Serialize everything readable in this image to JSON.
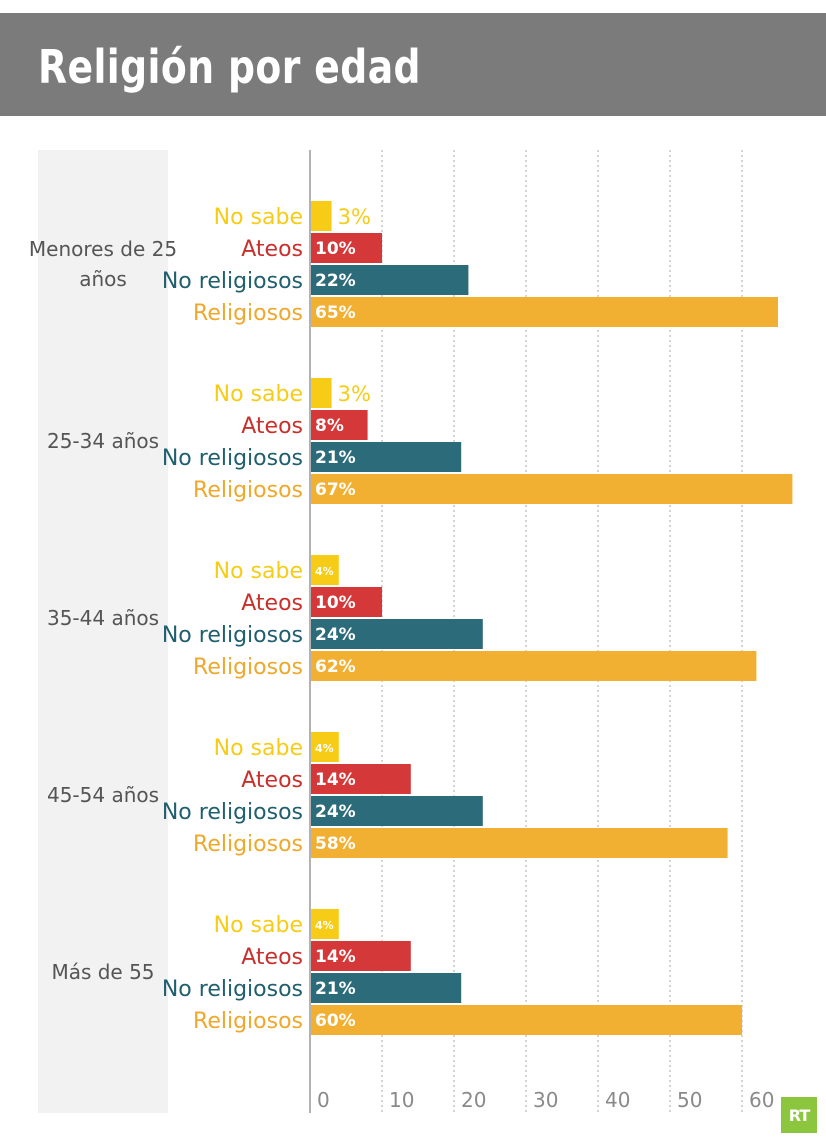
{
  "title": "Religión por edad",
  "logo_text": "RT",
  "colors": {
    "no_sabe": "#f7cc16",
    "ateos": "#d43838",
    "no_religiosos": "#2b6b7a",
    "religiosos": "#f2b033",
    "no_sabe_label": "#f7cc16",
    "ateos_label": "#c9302c",
    "no_religiosos_label": "#1f5f6e",
    "religiosos_label": "#eea82c",
    "panel": "#f2f2f2",
    "axis": "#999999",
    "grid": "#aaaaaa"
  },
  "chart_data": {
    "type": "bar",
    "orientation": "horizontal",
    "title": "Religión por edad",
    "xlim": [
      0,
      67
    ],
    "xticks": [
      "0",
      "10",
      "20",
      "30",
      "40",
      "50",
      "60"
    ],
    "grid": "vertical dotted",
    "categories": [
      "No sabe",
      "Ateos",
      "No religiosos",
      "Religiosos"
    ],
    "groups": [
      {
        "label": [
          "Menores de 25",
          "años"
        ],
        "series": [
          {
            "name": "No sabe",
            "value": 3,
            "label": "3%"
          },
          {
            "name": "Ateos",
            "value": 10,
            "label": "10%"
          },
          {
            "name": "No religiosos",
            "value": 22,
            "label": "22%"
          },
          {
            "name": "Religiosos",
            "value": 65,
            "label": "65%"
          }
        ]
      },
      {
        "label": [
          "25-34 años"
        ],
        "series": [
          {
            "name": "No sabe",
            "value": 3,
            "label": "3%"
          },
          {
            "name": "Ateos",
            "value": 8,
            "label": "8%"
          },
          {
            "name": "No religiosos",
            "value": 21,
            "label": "21%"
          },
          {
            "name": "Religiosos",
            "value": 67,
            "label": "67%"
          }
        ]
      },
      {
        "label": [
          "35-44 años"
        ],
        "series": [
          {
            "name": "No sabe",
            "value": 4,
            "label": "4%"
          },
          {
            "name": "Ateos",
            "value": 10,
            "label": "10%"
          },
          {
            "name": "No religiosos",
            "value": 24,
            "label": "24%"
          },
          {
            "name": "Religiosos",
            "value": 62,
            "label": "62%"
          }
        ]
      },
      {
        "label": [
          "45-54 años"
        ],
        "series": [
          {
            "name": "No sabe",
            "value": 4,
            "label": "4%"
          },
          {
            "name": "Ateos",
            "value": 14,
            "label": "14%"
          },
          {
            "name": "No religiosos",
            "value": 24,
            "label": "24%"
          },
          {
            "name": "Religiosos",
            "value": 58,
            "label": "58%"
          }
        ]
      },
      {
        "label": [
          "Más de 55"
        ],
        "series": [
          {
            "name": "No sabe",
            "value": 4,
            "label": "4%"
          },
          {
            "name": "Ateos",
            "value": 14,
            "label": "14%"
          },
          {
            "name": "No religiosos",
            "value": 21,
            "label": "21%"
          },
          {
            "name": "Religiosos",
            "value": 60,
            "label": "60%"
          }
        ]
      }
    ]
  }
}
